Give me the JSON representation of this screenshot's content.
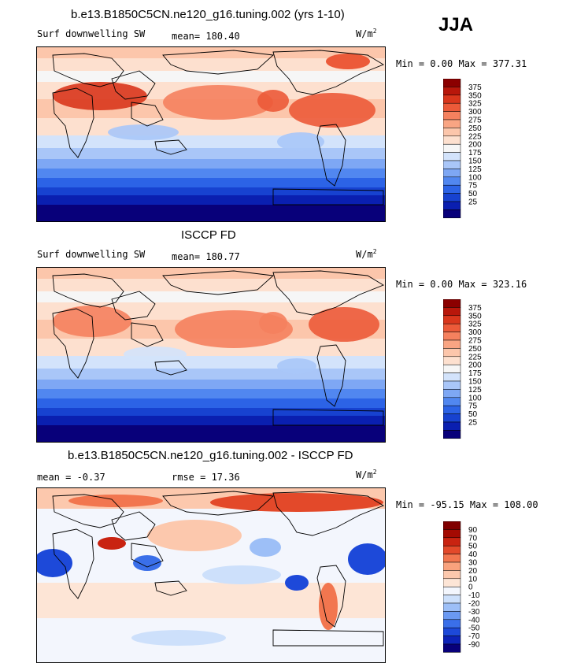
{
  "season": "JJA",
  "palette_main": [
    "#08007a",
    "#0a1fb0",
    "#1742d0",
    "#2c63e6",
    "#5187f0",
    "#7ea7f4",
    "#a9c6f8",
    "#d3e3fb",
    "#f6f6f6",
    "#fde0cf",
    "#fcc6ab",
    "#f9a583",
    "#f5815e",
    "#ec5a39",
    "#d9361c",
    "#b8170b",
    "#8b0000"
  ],
  "palette_diff": [
    "#08007a",
    "#0d23b8",
    "#1d49d9",
    "#3a6fe9",
    "#6a99f2",
    "#9dbff7",
    "#cde0fb",
    "#f3f6fd",
    "#fde5d6",
    "#fcc8ad",
    "#f9a27d",
    "#f2764f",
    "#e3492a",
    "#c92311",
    "#a40a02",
    "#800000"
  ],
  "panels": [
    {
      "title": "b.e13.B1850C5CN.ne120_g16.tuning.002 (yrs 1-10)",
      "left_label": "Surf downwelling SW",
      "stat_label": "mean= 180.40",
      "units": "W/m",
      "units_sup": "2",
      "minmax": "Min =   0.00 Max = 377.31",
      "colorbar_labels": [
        "375",
        "350",
        "325",
        "300",
        "275",
        "250",
        "225",
        "200",
        "175",
        "150",
        "125",
        "100",
        "75",
        "50",
        "25"
      ]
    },
    {
      "title": "ISCCP FD",
      "left_label": "Surf downwelling SW",
      "stat_label": "mean= 180.77",
      "units": "W/m",
      "units_sup": "2",
      "minmax": "Min =   0.00 Max = 323.16",
      "colorbar_labels": [
        "375",
        "350",
        "325",
        "300",
        "275",
        "250",
        "225",
        "200",
        "175",
        "150",
        "125",
        "100",
        "75",
        "50",
        "25"
      ]
    },
    {
      "title": "b.e13.B1850C5CN.ne120_g16.tuning.002 - ISCCP FD",
      "left_label": "mean =   -0.37",
      "stat_label": "rmse =   17.36",
      "units": "W/m",
      "units_sup": "2",
      "minmax": "Min = -95.15 Max = 108.00",
      "colorbar_labels": [
        "90",
        "70",
        "50",
        "40",
        "30",
        "20",
        "10",
        "0",
        "-10",
        "-20",
        "-30",
        "-40",
        "-50",
        "-70",
        "-90"
      ]
    }
  ],
  "chart_data": [
    {
      "type": "heatmap",
      "title": "b.e13.B1850C5CN.ne120_g16.tuning.002 (yrs 1-10)",
      "subtitle": "Surf downwelling SW",
      "mean": 180.4,
      "units": "W/m2",
      "min": 0.0,
      "max": 377.31,
      "levels": [
        25,
        50,
        75,
        100,
        125,
        150,
        175,
        200,
        225,
        250,
        275,
        300,
        325,
        350,
        375
      ]
    },
    {
      "type": "heatmap",
      "title": "ISCCP FD",
      "subtitle": "Surf downwelling SW",
      "mean": 180.77,
      "units": "W/m2",
      "min": 0.0,
      "max": 323.16,
      "levels": [
        25,
        50,
        75,
        100,
        125,
        150,
        175,
        200,
        225,
        250,
        275,
        300,
        325,
        350,
        375
      ]
    },
    {
      "type": "heatmap",
      "title": "b.e13.B1850C5CN.ne120_g16.tuning.002 - ISCCP FD",
      "mean": -0.37,
      "rmse": 17.36,
      "units": "W/m2",
      "min": -95.15,
      "max": 108.0,
      "levels": [
        -90,
        -70,
        -50,
        -40,
        -30,
        -20,
        -10,
        0,
        10,
        20,
        30,
        40,
        50,
        70,
        90
      ]
    }
  ]
}
